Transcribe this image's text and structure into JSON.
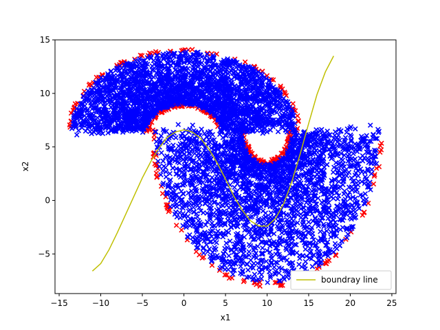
{
  "chart_data": {
    "type": "scatter",
    "title": "",
    "xlabel": "x1",
    "ylabel": "x2",
    "xlim": [
      -15.5,
      25.5
    ],
    "ylim": [
      -8.7,
      15.0
    ],
    "xticks": [
      -15,
      -10,
      -5,
      0,
      5,
      10,
      15,
      20,
      25
    ],
    "yticks": [
      -5,
      0,
      5,
      10,
      15
    ],
    "grid": false,
    "legend": {
      "placement": "lower-right",
      "entries": [
        "boundray line"
      ]
    },
    "colors": {
      "class_a": "#ff0000",
      "class_b": "#0000ff",
      "boundary": "#bfbf00"
    },
    "series": [
      {
        "kind": "scatter",
        "marker": "x",
        "color": "#ff0000",
        "description_region": "upper crescent, centered (0, 6.5), radius ~4.5 to ~13.5, x from -14 to 13.5",
        "upper_moon": {
          "center": [
            0,
            6.5
          ],
          "r_inner": 4.5,
          "r_outer": 13.5
        },
        "lower_moon": {
          "center": [
            10,
            6.5
          ],
          "r_inner": 3.0,
          "r_outer": 13.5
        }
      },
      {
        "kind": "scatter",
        "marker": "x",
        "color": "#0000ff",
        "upper_moon": {
          "center": [
            0,
            6.5
          ],
          "r_inner": 4.5,
          "r_outer": 13.5
        },
        "lower_moon": {
          "center": [
            10,
            6.5
          ],
          "r_inner": 3.0,
          "r_outer": 13.5
        }
      },
      {
        "name": "boundray line",
        "kind": "line",
        "color": "#bfbf00",
        "x": [
          -11,
          -10,
          -9,
          -8,
          -7,
          -6,
          -5,
          -4,
          -3,
          -2,
          -1,
          0,
          1,
          2,
          3,
          4,
          5,
          6,
          7,
          8,
          9,
          10,
          11,
          12,
          13,
          14,
          15,
          16,
          17,
          18
        ],
        "y": [
          -6.6,
          -5.9,
          -4.6,
          -3.0,
          -1.3,
          0.4,
          2.1,
          3.6,
          4.9,
          5.9,
          6.4,
          6.6,
          6.4,
          5.8,
          4.8,
          3.5,
          2.0,
          0.4,
          -0.9,
          -1.9,
          -2.4,
          -2.4,
          -1.7,
          -0.3,
          1.8,
          4.4,
          7.2,
          9.9,
          12.0,
          13.5
        ]
      }
    ]
  }
}
